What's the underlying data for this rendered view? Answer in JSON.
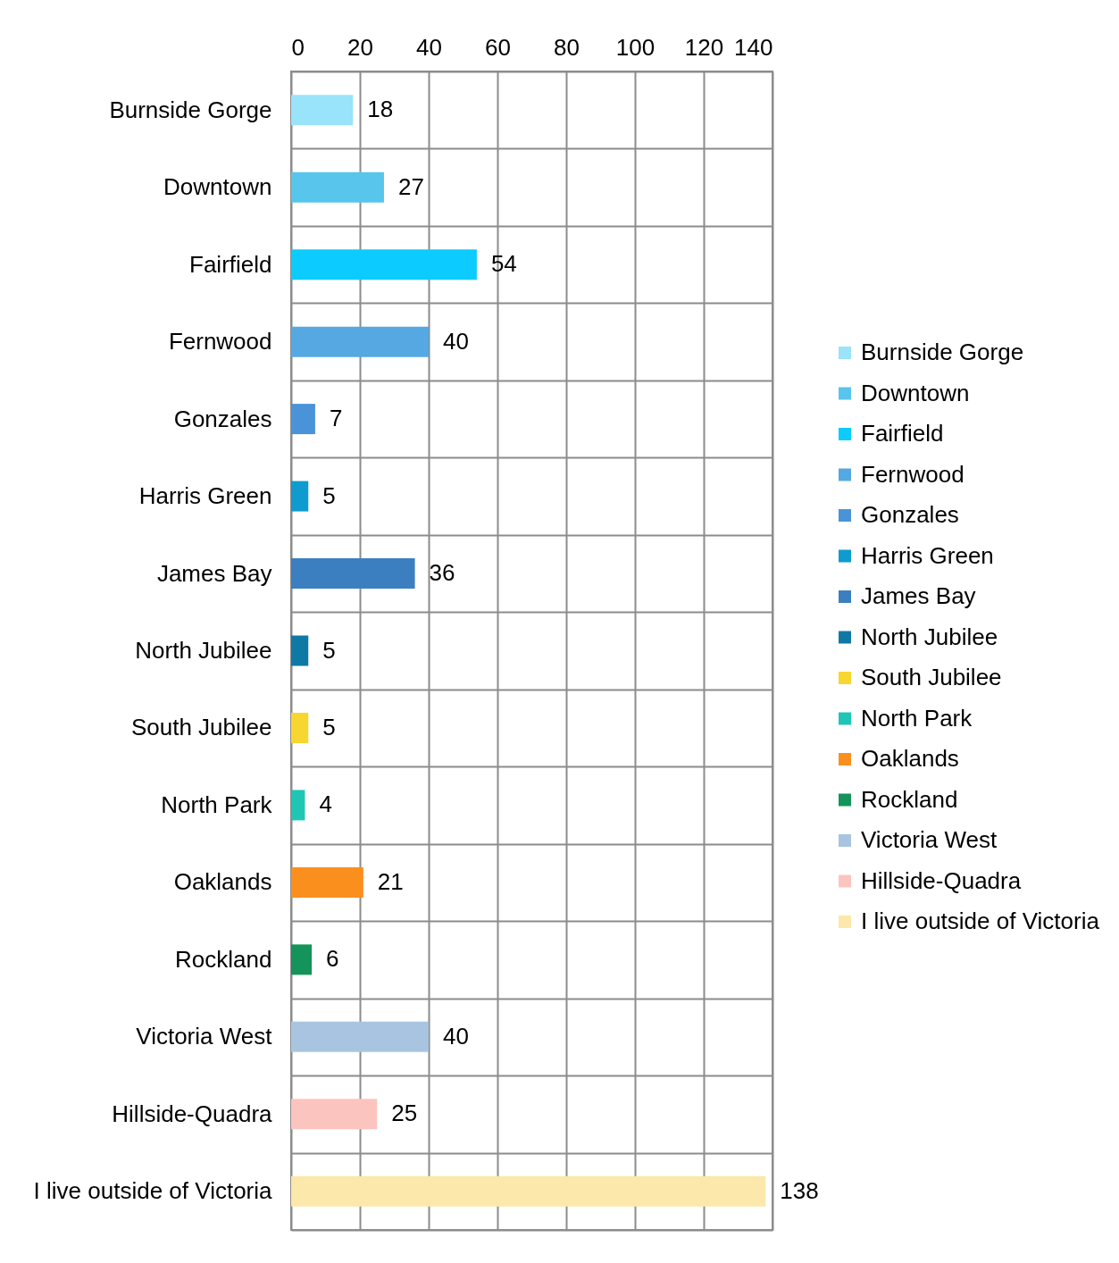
{
  "chart_data": {
    "type": "bar",
    "orientation": "horizontal",
    "stacked": true,
    "categories": [
      "Burnside Gorge",
      "Downtown",
      "Fairfield",
      "Fernwood",
      "Gonzales",
      "Harris Green",
      "James Bay",
      "North Jubilee",
      "South Jubilee",
      "North Park",
      "Oaklands",
      "Rockland",
      "Victoria West",
      "Hillside-Quadra",
      "I live outside of Victoria"
    ],
    "series": [
      {
        "name": "Burnside Gorge",
        "color": "#99e3fb",
        "values": [
          18,
          null,
          null,
          null,
          null,
          null,
          null,
          null,
          null,
          null,
          null,
          null,
          null,
          null,
          null
        ]
      },
      {
        "name": "Downtown",
        "color": "#57c5ec",
        "values": [
          null,
          27,
          null,
          null,
          null,
          null,
          null,
          null,
          null,
          null,
          null,
          null,
          null,
          null,
          null
        ]
      },
      {
        "name": "Fairfield",
        "color": "#0ccbff",
        "values": [
          null,
          null,
          54,
          null,
          null,
          null,
          null,
          null,
          null,
          null,
          null,
          null,
          null,
          null,
          null
        ]
      },
      {
        "name": "Fernwood",
        "color": "#55a8e2",
        "values": [
          null,
          null,
          null,
          40,
          null,
          null,
          null,
          null,
          null,
          null,
          null,
          null,
          null,
          null,
          null
        ]
      },
      {
        "name": "Gonzales",
        "color": "#4a93d8",
        "values": [
          null,
          null,
          null,
          null,
          7,
          null,
          null,
          null,
          null,
          null,
          null,
          null,
          null,
          null,
          null
        ]
      },
      {
        "name": "Harris Green",
        "color": "#0f9bcf",
        "values": [
          null,
          null,
          null,
          null,
          null,
          5,
          null,
          null,
          null,
          null,
          null,
          null,
          null,
          null,
          null
        ]
      },
      {
        "name": "James Bay",
        "color": "#3b7fc0",
        "values": [
          null,
          null,
          null,
          null,
          null,
          null,
          36,
          null,
          null,
          null,
          null,
          null,
          null,
          null,
          null
        ]
      },
      {
        "name": "North Jubilee",
        "color": "#0f79a5",
        "values": [
          null,
          null,
          null,
          null,
          null,
          null,
          null,
          5,
          null,
          null,
          null,
          null,
          null,
          null,
          null
        ]
      },
      {
        "name": "South Jubilee",
        "color": "#f7d630",
        "values": [
          null,
          null,
          null,
          null,
          null,
          null,
          null,
          null,
          5,
          null,
          null,
          null,
          null,
          null,
          null
        ]
      },
      {
        "name": "North Park",
        "color": "#1fc6b4",
        "values": [
          null,
          null,
          null,
          null,
          null,
          null,
          null,
          null,
          null,
          4,
          null,
          null,
          null,
          null,
          null
        ]
      },
      {
        "name": "Oaklands",
        "color": "#fb8f1e",
        "values": [
          null,
          null,
          null,
          null,
          null,
          null,
          null,
          null,
          null,
          null,
          21,
          null,
          null,
          null,
          null
        ]
      },
      {
        "name": "Rockland",
        "color": "#14945a",
        "values": [
          null,
          null,
          null,
          null,
          null,
          null,
          null,
          null,
          null,
          null,
          null,
          6,
          null,
          null,
          null
        ]
      },
      {
        "name": "Victoria West",
        "color": "#a8c4e0",
        "values": [
          null,
          null,
          null,
          null,
          null,
          null,
          null,
          null,
          null,
          null,
          null,
          null,
          40,
          null,
          null
        ]
      },
      {
        "name": "Hillside-Quadra",
        "color": "#fcc4bf",
        "values": [
          null,
          null,
          null,
          null,
          null,
          null,
          null,
          null,
          null,
          null,
          null,
          null,
          null,
          25,
          null
        ]
      },
      {
        "name": "I live outside of Victoria",
        "color": "#fbe8aa",
        "values": [
          null,
          null,
          null,
          null,
          null,
          null,
          null,
          null,
          null,
          null,
          null,
          null,
          null,
          null,
          138
        ]
      }
    ],
    "xlim": [
      0,
      140
    ],
    "xticks": [
      0,
      20,
      40,
      60,
      80,
      100,
      120,
      140
    ],
    "grid": true,
    "legend": "right",
    "data_labels": true
  }
}
